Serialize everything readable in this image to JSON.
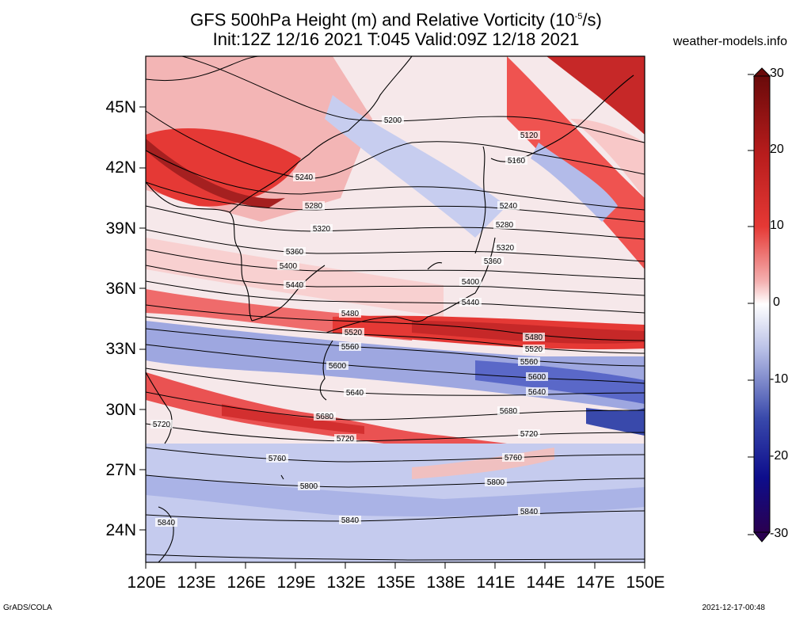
{
  "header": {
    "title_line1": "GFS 500hPa Height (m) and Relative Vorticity (10",
    "title_exp": "-5",
    "title_unit": "/s)",
    "title_line2": "Init:12Z 12/16 2021 T:045 Valid:09Z 12/18 2021",
    "site": "weather-models.info"
  },
  "map": {
    "lat_labels": [
      "45N",
      "42N",
      "39N",
      "36N",
      "33N",
      "30N",
      "27N",
      "24N"
    ],
    "lon_labels": [
      "120E",
      "123E",
      "126E",
      "129E",
      "132E",
      "135E",
      "138E",
      "141E",
      "144E",
      "147E",
      "150E"
    ],
    "contour_labels": [
      "5200",
      "5120",
      "5160",
      "5240",
      "5240",
      "5280",
      "5280",
      "5320",
      "5320",
      "5360",
      "5360",
      "5400",
      "5400",
      "5440",
      "5440",
      "5480",
      "5480",
      "5520",
      "5520",
      "5560",
      "5560",
      "5600",
      "5600",
      "5640",
      "5640",
      "5680",
      "5680",
      "5720",
      "5720",
      "5720",
      "5760",
      "5760",
      "5800",
      "5800",
      "5840",
      "5840",
      "5840"
    ]
  },
  "colorbar": {
    "labels": [
      "30",
      "20",
      "10",
      "0",
      "-10",
      "-20",
      "-30"
    ],
    "colors": [
      "#6a0a0a",
      "#b71c1c",
      "#e53935",
      "#ef9a9a",
      "#ffffff",
      "#9fa8da",
      "#3949ab",
      "#0d0d8c",
      "#2a0050"
    ]
  },
  "footer": {
    "left": "GrADS/COLA",
    "right": "2021-12-17-00:48"
  }
}
